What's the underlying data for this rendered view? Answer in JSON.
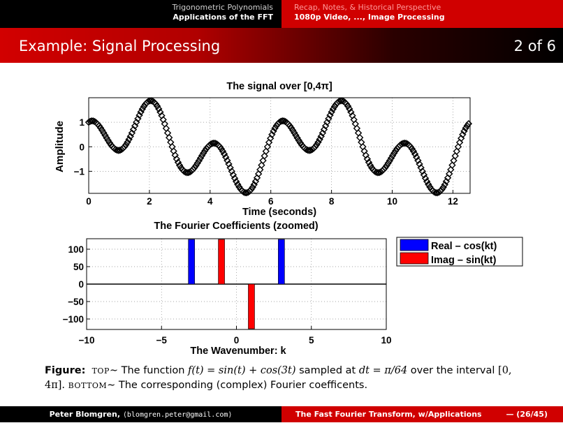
{
  "nav": {
    "left_section": "Trigonometric Polynomials",
    "left_subsection": "Applications of the FFT",
    "right_section": "Recap, Notes, & Historical Perspective",
    "right_subsection": "1080p Video, ..., Image Processing"
  },
  "slide": {
    "title": "Example: Signal Processing",
    "page": "2 of 6"
  },
  "chart_data": [
    {
      "type": "line",
      "title": "The signal over [0,4π]",
      "xlabel": "Time (seconds)",
      "ylabel": "Amplitude",
      "xlim": [
        0,
        12.566
      ],
      "ylim": [
        -1.9,
        2.0
      ],
      "x_ticks": [
        "0",
        "2",
        "4",
        "6",
        "8",
        "10",
        "12"
      ],
      "y_ticks": [
        "1",
        "0",
        "−1"
      ],
      "grid": true,
      "function": "sin(t) + cos(3t)",
      "sample_step": 0.0490874,
      "num_samples": 257,
      "marker": "diamond",
      "color": "#000000"
    },
    {
      "type": "bar",
      "title": "The Fourier Coefficients (zoomed)",
      "xlabel": "The Wavenumber: k",
      "xlim": [
        -10,
        10
      ],
      "ylim": [
        -130,
        130
      ],
      "x_ticks": [
        "−10",
        "−5",
        "0",
        "5",
        "10"
      ],
      "y_ticks": [
        "100",
        "50",
        "0",
        "−50",
        "−100"
      ],
      "grid": true,
      "legend_position": "outside-top-right",
      "series": [
        {
          "name": "Real – cos(kt)",
          "color": "#0000ff",
          "k": [
            -3,
            3
          ],
          "values": [
            128,
            128
          ]
        },
        {
          "name": "Imag – sin(kt)",
          "color": "#ff0000",
          "k": [
            -1,
            1
          ],
          "values": [
            128,
            -128
          ]
        }
      ]
    }
  ],
  "caption": {
    "label": "Figure:",
    "top_word": "top",
    "top_text_1": "The function",
    "formula": "f(t) = sin(t) + cos(3t)",
    "top_text_2": "sampled at",
    "dt": "dt = π/64",
    "top_text_3": "over the interval",
    "interval": "[0, 4π].",
    "bottom_word": "bottom",
    "bottom_text": "The corresponding (complex) Fourier coefficents."
  },
  "footer": {
    "author": "Peter Blomgren,",
    "email": "⟨blomgren.peter@gmail.com⟩",
    "talk_title": "The Fast Fourier Transform, w/Applications",
    "slide_count": "— (26/45)"
  }
}
